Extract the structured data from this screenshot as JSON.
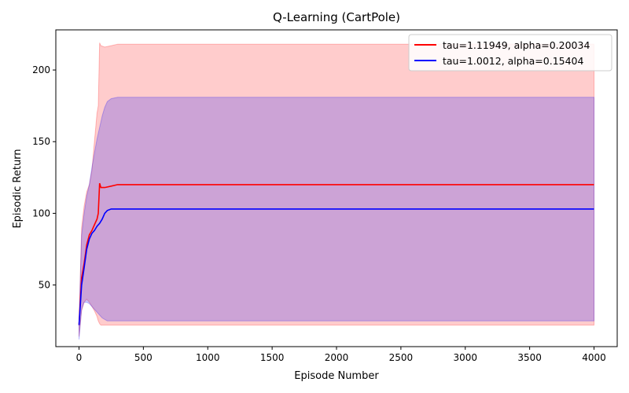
{
  "chart_data": {
    "type": "line",
    "title": "Q-Learning (CartPole)",
    "xlabel": "Episode Number",
    "ylabel": "Episodic Return",
    "xlim": [
      -180,
      4180
    ],
    "ylim": [
      7,
      228
    ],
    "xticks": [
      0,
      500,
      1000,
      1500,
      2000,
      2500,
      3000,
      3500,
      4000
    ],
    "yticks": [
      50,
      100,
      150,
      200
    ],
    "grid": false,
    "legend_position": "top-right",
    "series": [
      {
        "name": "tau=1.11949, alpha=0.20034",
        "color": "#ff0000",
        "x": [
          0,
          20,
          40,
          60,
          80,
          100,
          120,
          140,
          150,
          160,
          170,
          200,
          250,
          300,
          500,
          1000,
          1500,
          2000,
          2500,
          3000,
          3500,
          4000
        ],
        "y": [
          22,
          55,
          65,
          78,
          85,
          88,
          92,
          96,
          100,
          121,
          118,
          118,
          119,
          120,
          120,
          120,
          120,
          120,
          120,
          120,
          120,
          120
        ],
        "upper": [
          25,
          90,
          105,
          115,
          120,
          130,
          150,
          170,
          175,
          219,
          217,
          216,
          217,
          218,
          218,
          218,
          218,
          218,
          218,
          218,
          218,
          218
        ],
        "lower": [
          14,
          32,
          38,
          40,
          38,
          35,
          32,
          28,
          25,
          23,
          22,
          22,
          22,
          22,
          22,
          22,
          22,
          22,
          22,
          22,
          22,
          22
        ]
      },
      {
        "name": "tau=1.0012, alpha=0.15404",
        "color": "#0000ff",
        "x": [
          0,
          20,
          40,
          60,
          80,
          100,
          120,
          140,
          160,
          180,
          200,
          220,
          250,
          300,
          500,
          1000,
          1500,
          2000,
          2500,
          3000,
          3500,
          4000
        ],
        "y": [
          22,
          50,
          62,
          75,
          82,
          86,
          88,
          91,
          93,
          96,
          100,
          102,
          103,
          103,
          103,
          103,
          103,
          103,
          103,
          103,
          103,
          103
        ],
        "upper": [
          24,
          85,
          100,
          112,
          120,
          132,
          142,
          152,
          160,
          168,
          174,
          178,
          180,
          181,
          181,
          181,
          181,
          181,
          181,
          181,
          181,
          181
        ],
        "lower": [
          12,
          33,
          38,
          38,
          37,
          35,
          33,
          31,
          29,
          27,
          26,
          25,
          25,
          25,
          25,
          25,
          25,
          25,
          25,
          25,
          25,
          25
        ]
      }
    ]
  }
}
